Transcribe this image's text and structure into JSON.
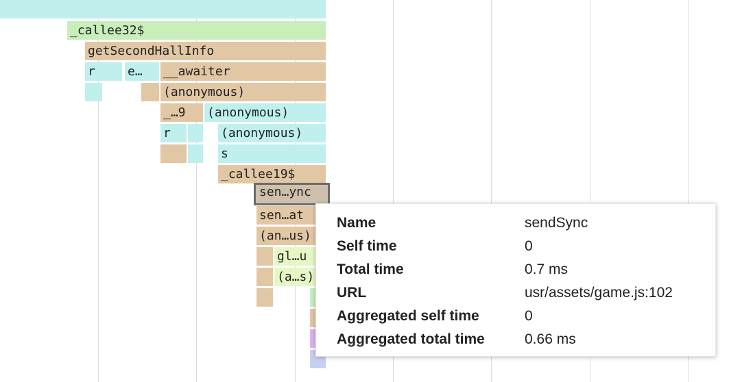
{
  "frames": [
    {
      "id": "top",
      "label": ""
    },
    {
      "id": "callee32",
      "label": "_callee32$"
    },
    {
      "id": "getSecondHallInfo",
      "label": "getSecondHallInfo"
    },
    {
      "id": "r1",
      "label": "r"
    },
    {
      "id": "e1",
      "label": "e…"
    },
    {
      "id": "awaiter",
      "label": "__awaiter"
    },
    {
      "id": "anon1",
      "label": "(anonymous)"
    },
    {
      "id": "u9",
      "label": "_…9"
    },
    {
      "id": "anon2",
      "label": "(anonymous)"
    },
    {
      "id": "r2",
      "label": "r"
    },
    {
      "id": "anon3",
      "label": "(anonymous)"
    },
    {
      "id": "s1",
      "label": "s"
    },
    {
      "id": "callee19",
      "label": "_callee19$"
    },
    {
      "id": "sendSync",
      "label": "sen…ync"
    },
    {
      "id": "senat",
      "label": "sen…at"
    },
    {
      "id": "anus",
      "label": "(an…us)"
    },
    {
      "id": "glu",
      "label": "gl…u"
    },
    {
      "id": "as",
      "label": "(a…s)"
    }
  ],
  "tooltip": {
    "rows": [
      {
        "key": "Name",
        "value": "sendSync"
      },
      {
        "key": "Self time",
        "value": "0"
      },
      {
        "key": "Total time",
        "value": "0.7 ms"
      },
      {
        "key": "URL",
        "value": "usr/assets/game.js:102"
      },
      {
        "key": "Aggregated self time",
        "value": "0"
      },
      {
        "key": "Aggregated total time",
        "value": "0.66 ms"
      }
    ]
  }
}
